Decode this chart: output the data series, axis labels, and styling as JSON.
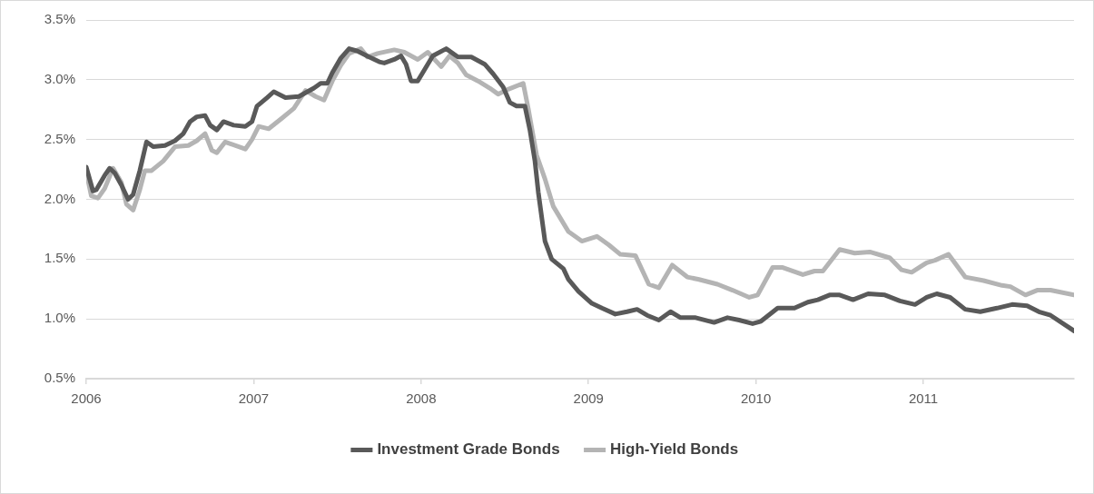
{
  "chart_data": {
    "type": "line",
    "xlim": [
      2006,
      2011.9
    ],
    "xticks": [
      2006,
      2007,
      2008,
      2009,
      2010,
      2011
    ],
    "ylim": [
      0.5,
      3.5
    ],
    "yticks": [
      {
        "value": 0.5,
        "label": "0.5%"
      },
      {
        "value": 1.0,
        "label": "1.0%"
      },
      {
        "value": 1.5,
        "label": "1.5%"
      },
      {
        "value": 2.0,
        "label": "2.0%"
      },
      {
        "value": 2.5,
        "label": "2.5%"
      },
      {
        "value": 3.0,
        "label": "3.0%"
      },
      {
        "value": 3.5,
        "label": "3.5%"
      }
    ],
    "grid": "y",
    "legend": "bottom",
    "marker": "none",
    "line_style": "solid",
    "series": [
      {
        "name": "Investment Grade Bonds",
        "color": "#595959",
        "x": [
          2006.0,
          2006.04,
          2006.06,
          2006.11,
          2006.14,
          2006.17,
          2006.21,
          2006.25,
          2006.28,
          2006.32,
          2006.36,
          2006.4,
          2006.47,
          2006.53,
          2006.58,
          2006.62,
          2006.66,
          2006.71,
          2006.74,
          2006.78,
          2006.82,
          2006.88,
          2006.95,
          2006.99,
          2007.02,
          2007.08,
          2007.12,
          2007.19,
          2007.27,
          2007.36,
          2007.4,
          2007.44,
          2007.47,
          2007.52,
          2007.57,
          2007.62,
          2007.69,
          2007.75,
          2007.78,
          2007.84,
          2007.88,
          2007.91,
          2007.94,
          2007.98,
          2008.01,
          2008.07,
          2008.15,
          2008.22,
          2008.3,
          2008.38,
          2008.43,
          2008.49,
          2008.53,
          2008.57,
          2008.62,
          2008.65,
          2008.68,
          2008.7,
          2008.74,
          2008.78,
          2008.85,
          2008.88,
          2008.94,
          2009.02,
          2009.08,
          2009.16,
          2009.23,
          2009.29,
          2009.35,
          2009.42,
          2009.49,
          2009.55,
          2009.64,
          2009.75,
          2009.83,
          2009.9,
          2009.98,
          2010.03,
          2010.13,
          2010.23,
          2010.31,
          2010.37,
          2010.44,
          2010.5,
          2010.58,
          2010.67,
          2010.77,
          2010.86,
          2010.95,
          2011.02,
          2011.08,
          2011.16,
          2011.25,
          2011.34,
          2011.44,
          2011.53,
          2011.62,
          2011.69,
          2011.76,
          2011.9
        ],
        "values": [
          2.27,
          2.07,
          2.08,
          2.2,
          2.26,
          2.22,
          2.12,
          2.0,
          2.04,
          2.24,
          2.48,
          2.44,
          2.45,
          2.49,
          2.55,
          2.65,
          2.69,
          2.7,
          2.62,
          2.58,
          2.65,
          2.62,
          2.61,
          2.65,
          2.78,
          2.85,
          2.9,
          2.85,
          2.86,
          2.93,
          2.97,
          2.97,
          3.06,
          3.18,
          3.26,
          3.24,
          3.19,
          3.15,
          3.14,
          3.17,
          3.2,
          3.13,
          2.99,
          2.99,
          3.06,
          3.2,
          3.26,
          3.19,
          3.19,
          3.13,
          3.05,
          2.94,
          2.81,
          2.78,
          2.78,
          2.58,
          2.32,
          2.06,
          1.65,
          1.5,
          1.42,
          1.33,
          1.23,
          1.13,
          1.09,
          1.04,
          1.06,
          1.08,
          1.03,
          0.99,
          1.06,
          1.01,
          1.01,
          0.97,
          1.01,
          0.99,
          0.96,
          0.98,
          1.09,
          1.09,
          1.14,
          1.16,
          1.2,
          1.2,
          1.16,
          1.21,
          1.2,
          1.15,
          1.12,
          1.18,
          1.21,
          1.18,
          1.08,
          1.06,
          1.09,
          1.12,
          1.11,
          1.06,
          1.03,
          0.9
        ]
      },
      {
        "name": "High-Yield Bonds",
        "color": "#b4b4b4",
        "x": [
          2006.0,
          2006.03,
          2006.07,
          2006.11,
          2006.16,
          2006.21,
          2006.24,
          2006.28,
          2006.32,
          2006.35,
          2006.39,
          2006.46,
          2006.53,
          2006.61,
          2006.66,
          2006.71,
          2006.75,
          2006.78,
          2006.83,
          2006.95,
          2006.99,
          2007.03,
          2007.09,
          2007.17,
          2007.24,
          2007.31,
          2007.37,
          2007.42,
          2007.47,
          2007.52,
          2007.57,
          2007.64,
          2007.68,
          2007.74,
          2007.84,
          2007.9,
          2007.98,
          2008.04,
          2008.12,
          2008.17,
          2008.22,
          2008.27,
          2008.34,
          2008.41,
          2008.46,
          2008.52,
          2008.61,
          2008.64,
          2008.69,
          2008.74,
          2008.79,
          2008.88,
          2008.96,
          2009.05,
          2009.12,
          2009.19,
          2009.28,
          2009.36,
          2009.42,
          2009.5,
          2009.59,
          2009.66,
          2009.77,
          2009.86,
          2009.96,
          2010.01,
          2010.1,
          2010.16,
          2010.28,
          2010.35,
          2010.4,
          2010.5,
          2010.59,
          2010.68,
          2010.8,
          2010.87,
          2010.93,
          2011.02,
          2011.07,
          2011.15,
          2011.25,
          2011.36,
          2011.47,
          2011.52,
          2011.61,
          2011.68,
          2011.76,
          2011.9
        ],
        "values": [
          2.23,
          2.03,
          2.01,
          2.09,
          2.26,
          2.14,
          1.96,
          1.91,
          2.08,
          2.24,
          2.24,
          2.32,
          2.44,
          2.45,
          2.49,
          2.55,
          2.41,
          2.39,
          2.48,
          2.42,
          2.5,
          2.61,
          2.59,
          2.68,
          2.76,
          2.91,
          2.86,
          2.83,
          2.99,
          3.12,
          3.22,
          3.26,
          3.19,
          3.22,
          3.25,
          3.23,
          3.17,
          3.23,
          3.11,
          3.2,
          3.14,
          3.04,
          2.99,
          2.93,
          2.88,
          2.92,
          2.97,
          2.76,
          2.37,
          2.17,
          1.94,
          1.73,
          1.65,
          1.69,
          1.62,
          1.54,
          1.53,
          1.29,
          1.26,
          1.45,
          1.35,
          1.33,
          1.29,
          1.24,
          1.18,
          1.2,
          1.43,
          1.43,
          1.37,
          1.4,
          1.4,
          1.58,
          1.55,
          1.56,
          1.51,
          1.41,
          1.39,
          1.47,
          1.49,
          1.54,
          1.35,
          1.32,
          1.28,
          1.27,
          1.2,
          1.24,
          1.24,
          1.2
        ]
      }
    ]
  }
}
